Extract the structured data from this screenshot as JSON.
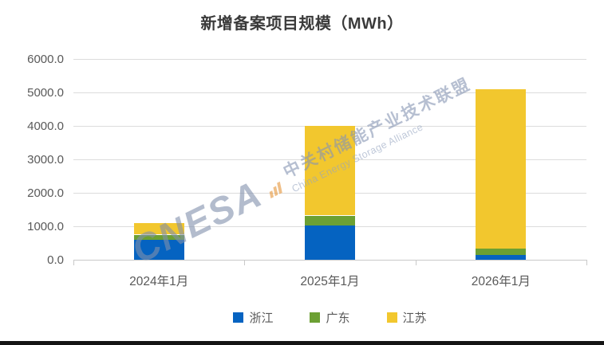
{
  "watermark": {
    "acronym": "CNESA",
    "cn": "中关村储能产业技术联盟",
    "en": "China Energy Storage Alliance"
  },
  "chart_data": {
    "type": "bar",
    "stacked": true,
    "title": "新增备案项目规模（MWh）",
    "unit": "MWh",
    "categories": [
      "2024年1月",
      "2025年1月",
      "2026年1月"
    ],
    "series": [
      {
        "name": "浙江",
        "color": "#0563C1",
        "values": [
          600,
          1020,
          140
        ]
      },
      {
        "name": "广东",
        "color": "#6CA033",
        "values": [
          150,
          300,
          200
        ]
      },
      {
        "name": "江苏",
        "color": "#F2C72E",
        "values": [
          350,
          2670,
          4760
        ]
      }
    ],
    "totals_approx": [
      1100,
      3990,
      5100
    ],
    "ylim": [
      0,
      6000
    ],
    "ytick_step": 1000,
    "ytick_labels": [
      "0.0",
      "1000.0",
      "2000.0",
      "3000.0",
      "4000.0",
      "5000.0",
      "6000.0"
    ],
    "grid": true,
    "legend_position": "bottom"
  }
}
